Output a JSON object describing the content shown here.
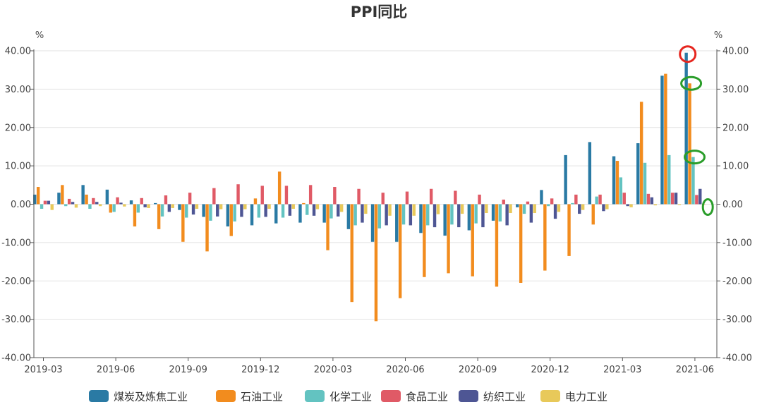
{
  "chart_data": {
    "type": "bar",
    "title": "PPI同比",
    "y_unit_left": "%",
    "y_unit_right": "%",
    "ylim": [
      -40,
      40
    ],
    "yticks": [
      40,
      30,
      20,
      10,
      0,
      -10,
      -20,
      -30,
      -40
    ],
    "ytick_labels": [
      "40.00",
      "30.00",
      "20.00",
      "10.00",
      "0.00",
      "-10.00",
      "-20.00",
      "-30.00",
      "-40.00"
    ],
    "x_tick_labels": [
      "2019-03",
      "2019-06",
      "2019-09",
      "2019-12",
      "2020-03",
      "2020-06",
      "2020-09",
      "2020-12",
      "2021-03",
      "2021-06"
    ],
    "categories": [
      "2019-03",
      "2019-04",
      "2019-05",
      "2019-06",
      "2019-07",
      "2019-08",
      "2019-09",
      "2019-10",
      "2019-11",
      "2019-12",
      "2020-01",
      "2020-02",
      "2020-03",
      "2020-04",
      "2020-05",
      "2020-06",
      "2020-07",
      "2020-08",
      "2020-09",
      "2020-10",
      "2020-11",
      "2020-12",
      "2021-01",
      "2021-02",
      "2021-03",
      "2021-04",
      "2021-05",
      "2021-06"
    ],
    "series": [
      {
        "name": "煤炭及炼焦工业",
        "color": "#2a7aa4",
        "values": [
          2.5,
          3.0,
          5.0,
          3.8,
          1.0,
          0.3,
          -1.5,
          -3.3,
          -5.8,
          -5.5,
          -5.0,
          -4.8,
          -4.8,
          -6.5,
          -9.8,
          -9.8,
          -7.5,
          -8.2,
          -6.8,
          -4.3,
          -0.8,
          3.7,
          12.8,
          16.2,
          12.5,
          15.9,
          33.5,
          39.5
        ]
      },
      {
        "name": "石油工业",
        "color": "#f28c1e",
        "values": [
          4.5,
          5.0,
          2.5,
          -2.2,
          -5.8,
          -6.5,
          -9.8,
          -12.3,
          -8.3,
          1.5,
          8.5,
          0.3,
          -12.0,
          -25.5,
          -30.5,
          -24.5,
          -19.0,
          -18.0,
          -18.8,
          -21.5,
          -20.5,
          -17.3,
          -13.5,
          -5.3,
          11.3,
          26.7,
          34.0,
          31.5
        ]
      },
      {
        "name": "化学工业",
        "color": "#63c3c1",
        "values": [
          -1.2,
          -0.5,
          -1.2,
          -2.0,
          -2.2,
          -3.2,
          -3.5,
          -4.3,
          -4.5,
          -3.5,
          -3.5,
          -2.8,
          -3.7,
          -5.5,
          -6.3,
          -5.3,
          -5.5,
          -5.3,
          -5.0,
          -4.5,
          -2.5,
          -0.5,
          0.3,
          2.0,
          7.0,
          10.8,
          12.8,
          12.3
        ]
      },
      {
        "name": "食品工业",
        "color": "#e05a66",
        "values": [
          0.9,
          1.4,
          1.6,
          1.8,
          1.6,
          2.3,
          3.0,
          4.2,
          5.2,
          4.8,
          4.8,
          5.0,
          4.5,
          4.0,
          3.0,
          3.3,
          4.0,
          3.5,
          2.5,
          1.2,
          0.7,
          1.5,
          2.5,
          2.5,
          3.0,
          2.7,
          3.0,
          2.4
        ]
      },
      {
        "name": "纺织工业",
        "color": "#4e5694",
        "values": [
          0.9,
          0.6,
          0.6,
          0.4,
          -0.8,
          -2.0,
          -2.7,
          -3.2,
          -3.3,
          -3.3,
          -3.0,
          -3.0,
          -3.2,
          -4.8,
          -5.5,
          -5.5,
          -6.0,
          -6.0,
          -6.0,
          -5.5,
          -4.8,
          -3.8,
          -2.5,
          -1.8,
          -0.5,
          1.8,
          3.0,
          4.0
        ]
      },
      {
        "name": "电力工业",
        "color": "#e8c95a",
        "values": [
          -1.5,
          -0.9,
          -0.5,
          -0.6,
          -1.0,
          -1.0,
          -1.2,
          -1.3,
          -1.3,
          -1.2,
          -1.2,
          -1.3,
          -2.0,
          -2.5,
          -3.0,
          -3.0,
          -2.6,
          -2.5,
          -2.3,
          -2.3,
          -2.3,
          -2.0,
          -1.5,
          -1.3,
          -0.8,
          -0.3,
          -0.2,
          -0.2
        ]
      }
    ],
    "annotations": [
      {
        "shape": "ellipse",
        "color": "#e6261f",
        "series": "煤炭及炼焦工业",
        "category": "2021-06"
      },
      {
        "shape": "ellipse",
        "color": "#2a9d2a",
        "series": "石油工业",
        "category": "2021-06"
      },
      {
        "shape": "ellipse",
        "color": "#2a9d2a",
        "series": "化学工业",
        "category": "2021-06"
      },
      {
        "shape": "ellipse",
        "color": "#2a9d2a",
        "series": "电力工业",
        "category": "2021-06"
      }
    ],
    "grid": true,
    "legend_position": "bottom"
  }
}
